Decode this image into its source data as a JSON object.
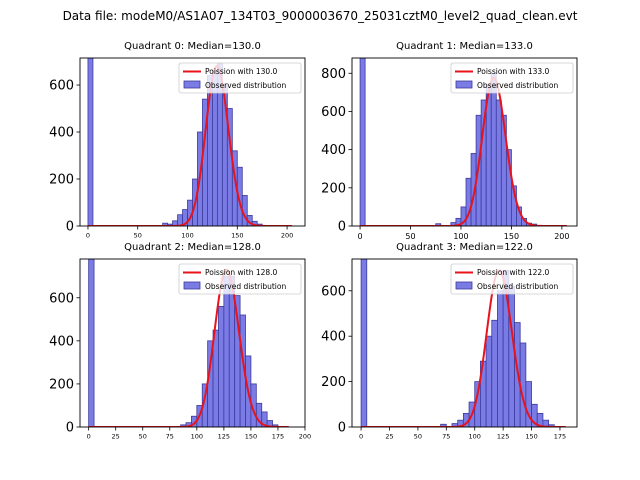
{
  "figure": {
    "suptitle": "Data file: modeM0/AS1A07_134T03_9000003670_25031cztM0_level2_quad_clean.evt"
  },
  "colors": {
    "bar_fill": "#7b7be6",
    "bar_edge": "#3b3b9c",
    "poisson_line": "#e8131b"
  },
  "chart_data": [
    {
      "type": "bar",
      "title": "Quadrant 0: Median=130.0",
      "xlim": [
        -8,
        218
      ],
      "ylim": [
        0,
        715
      ],
      "xticks": [
        0,
        50,
        100,
        150,
        200
      ],
      "yticks": [
        0,
        200,
        400,
        600
      ],
      "bin_width": 5,
      "legend": [
        "Poission with 130.0",
        "Observed distribution"
      ],
      "legend_loc": "upper right",
      "median": 130.0,
      "bins": [
        [
          0,
          715
        ],
        [
          75,
          12
        ],
        [
          80,
          8
        ],
        [
          85,
          22
        ],
        [
          90,
          48
        ],
        [
          95,
          70
        ],
        [
          100,
          110
        ],
        [
          105,
          200
        ],
        [
          110,
          400
        ],
        [
          115,
          540
        ],
        [
          120,
          640
        ],
        [
          125,
          660
        ],
        [
          130,
          690
        ],
        [
          135,
          600
        ],
        [
          140,
          500
        ],
        [
          145,
          320
        ],
        [
          150,
          250
        ],
        [
          155,
          130
        ],
        [
          160,
          45
        ],
        [
          165,
          20
        ],
        [
          170,
          8
        ]
      ],
      "poisson_peak": 680,
      "poisson_range": [
        0,
        205
      ]
    },
    {
      "type": "bar",
      "title": "Quadrant 1: Median=133.0",
      "xlim": [
        -8,
        215
      ],
      "ylim": [
        0,
        880
      ],
      "xticks": [
        0,
        50,
        100,
        150,
        200
      ],
      "yticks": [
        0,
        200,
        400,
        600,
        800
      ],
      "bin_width": 5,
      "legend": [
        "Poission with 133.0",
        "Observed distribution"
      ],
      "legend_loc": "upper right",
      "median": 133.0,
      "bins": [
        [
          0,
          880
        ],
        [
          75,
          12
        ],
        [
          90,
          18
        ],
        [
          95,
          40
        ],
        [
          100,
          100
        ],
        [
          105,
          250
        ],
        [
          110,
          380
        ],
        [
          115,
          580
        ],
        [
          120,
          660
        ],
        [
          125,
          740
        ],
        [
          130,
          800
        ],
        [
          135,
          660
        ],
        [
          140,
          580
        ],
        [
          145,
          400
        ],
        [
          150,
          210
        ],
        [
          155,
          100
        ],
        [
          160,
          40
        ],
        [
          165,
          15
        ],
        [
          170,
          10
        ]
      ],
      "poisson_peak": 775,
      "poisson_range": [
        0,
        205
      ]
    },
    {
      "type": "bar",
      "title": "Quadrant 2: Median=128.0",
      "xlim": [
        -8,
        200
      ],
      "ylim": [
        0,
        780
      ],
      "xticks": [
        0,
        25,
        50,
        75,
        100,
        125,
        150,
        175,
        200
      ],
      "yticks": [
        0,
        200,
        400,
        600
      ],
      "bin_width": 5,
      "legend": [
        "Poission with 128.0",
        "Observed distribution"
      ],
      "legend_loc": "upper right",
      "median": 128.0,
      "bins": [
        [
          0,
          780
        ],
        [
          85,
          10
        ],
        [
          90,
          20
        ],
        [
          95,
          50
        ],
        [
          100,
          100
        ],
        [
          105,
          200
        ],
        [
          110,
          400
        ],
        [
          115,
          450
        ],
        [
          120,
          560
        ],
        [
          125,
          700
        ],
        [
          130,
          700
        ],
        [
          135,
          610
        ],
        [
          140,
          520
        ],
        [
          145,
          330
        ],
        [
          150,
          200
        ],
        [
          155,
          110
        ],
        [
          160,
          70
        ],
        [
          165,
          30
        ],
        [
          170,
          10
        ]
      ],
      "poisson_peak": 730,
      "poisson_range": [
        0,
        185
      ]
    },
    {
      "type": "bar",
      "title": "Quadrant 3: Median=122.0",
      "xlim": [
        -8,
        190
      ],
      "ylim": [
        0,
        740
      ],
      "xticks": [
        0,
        25,
        50,
        75,
        100,
        125,
        150,
        175
      ],
      "yticks": [
        0,
        200,
        400,
        600
      ],
      "bin_width": 5,
      "legend": [
        "Poission with 122.0",
        "Observed distribution"
      ],
      "legend_loc": "upper right",
      "median": 122.0,
      "bins": [
        [
          0,
          740
        ],
        [
          70,
          12
        ],
        [
          80,
          15
        ],
        [
          85,
          30
        ],
        [
          90,
          60
        ],
        [
          95,
          110
        ],
        [
          100,
          200
        ],
        [
          105,
          290
        ],
        [
          110,
          400
        ],
        [
          115,
          470
        ],
        [
          120,
          600
        ],
        [
          125,
          690
        ],
        [
          130,
          620
        ],
        [
          135,
          460
        ],
        [
          140,
          370
        ],
        [
          145,
          200
        ],
        [
          150,
          100
        ],
        [
          155,
          60
        ],
        [
          160,
          30
        ],
        [
          165,
          10
        ]
      ],
      "poisson_peak": 690,
      "poisson_range": [
        0,
        180
      ]
    }
  ]
}
